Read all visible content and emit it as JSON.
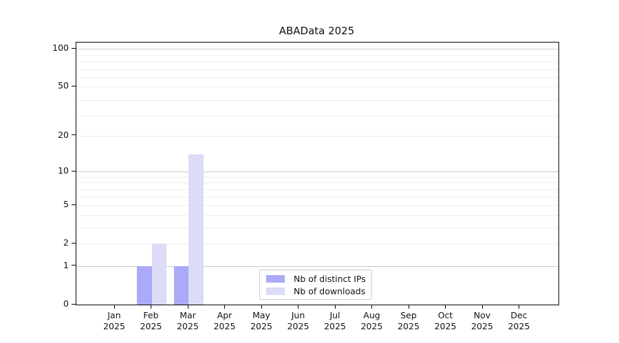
{
  "chart_data": {
    "type": "bar",
    "title": "ABAData 2025",
    "months": [
      "Jan",
      "Feb",
      "Mar",
      "Apr",
      "May",
      "Jun",
      "Jul",
      "Aug",
      "Sep",
      "Oct",
      "Nov",
      "Dec"
    ],
    "year": "2025",
    "series": [
      {
        "name": "Nb of distinct IPs",
        "color": "#aaaaf8",
        "values": [
          0,
          1,
          1,
          0,
          0,
          0,
          0,
          0,
          0,
          0,
          0,
          0
        ]
      },
      {
        "name": "Nb of downloads",
        "color": "#dcdcf8",
        "values": [
          0,
          2,
          14,
          0,
          0,
          0,
          0,
          0,
          0,
          0,
          0,
          0
        ]
      }
    ],
    "yscale": "log1p",
    "ylim": [
      0,
      100
    ],
    "yticks": [
      0,
      1,
      2,
      5,
      10,
      20,
      50,
      100
    ],
    "grid": {
      "dark_lines_at": [
        1,
        10,
        100
      ],
      "light_lines_at": [
        2,
        3,
        4,
        5,
        6,
        7,
        8,
        9,
        20,
        29,
        39,
        50,
        59,
        69,
        79,
        89
      ],
      "dark_color": "#c9c9c9",
      "light_color": "#ededed"
    },
    "legend": {
      "position": "lower center"
    },
    "axis_color": "#000000",
    "background": "#ffffff"
  }
}
